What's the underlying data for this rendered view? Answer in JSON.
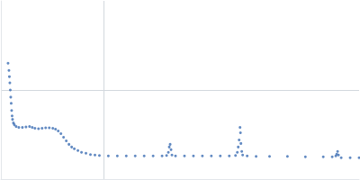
{
  "chart_data": {
    "type": "scatter",
    "color": "#3b6db3",
    "marker": "circle",
    "grid": true,
    "tick_labels": false,
    "xlim": [
      0,
      400
    ],
    "ylim": [
      0,
      200
    ],
    "xticks": [
      115
    ],
    "yticks": [
      100
    ],
    "x": [
      8,
      9,
      9.5,
      10,
      10.5,
      11,
      11.5,
      12,
      12.5,
      13,
      14,
      15,
      17,
      20,
      24,
      28,
      32,
      35,
      38,
      42,
      46,
      50,
      54,
      58,
      61,
      64,
      67,
      70,
      73,
      76,
      79,
      82,
      86,
      90,
      95,
      100,
      105,
      110,
      120,
      130,
      140,
      150,
      160,
      170,
      180,
      185,
      187,
      188,
      189,
      190,
      191,
      195,
      205,
      215,
      225,
      235,
      245,
      255,
      262,
      264,
      265,
      266,
      267,
      267.5,
      268,
      269,
      270,
      275,
      285,
      300,
      320,
      340,
      360,
      370,
      374,
      375,
      376,
      377,
      380,
      390,
      400
    ],
    "values": [
      130,
      122,
      115,
      108,
      100,
      92,
      85,
      77,
      71,
      67,
      63,
      61,
      59,
      58,
      58,
      58.5,
      59,
      58,
      57,
      56.5,
      57,
      57.5,
      57.5,
      57,
      56,
      54,
      51,
      47,
      43,
      39,
      36,
      34,
      32,
      30,
      29,
      27.5,
      27,
      26.5,
      26,
      26,
      26,
      26,
      26,
      26,
      26,
      26.5,
      30,
      36,
      39,
      33,
      27,
      26,
      26,
      26,
      26,
      26,
      26,
      26,
      26.5,
      30,
      36,
      44,
      58,
      52,
      40,
      31,
      27,
      26,
      25.5,
      25.5,
      25.5,
      25,
      25,
      25,
      26,
      28,
      31,
      27,
      24,
      24,
      24
    ]
  }
}
